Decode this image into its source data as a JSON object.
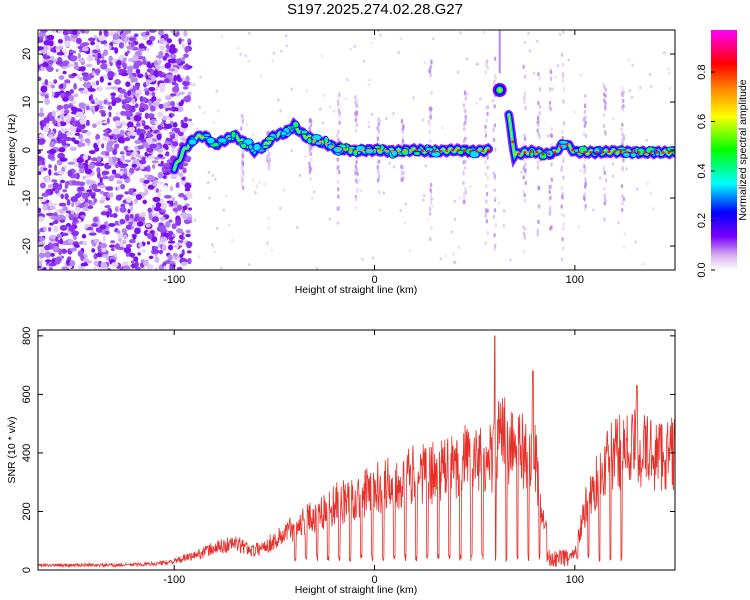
{
  "title": "S197.2025.274.02.28.G27",
  "chart_data": [
    {
      "type": "heatmap",
      "name": "spectrogram",
      "xlabel": "Height of straight line (km)",
      "ylabel": "Frequency (Hz)",
      "xlim": [
        -168,
        150
      ],
      "ylim": [
        -25,
        25
      ],
      "xticks": [
        -100,
        0,
        100
      ],
      "yticks": [
        -20,
        -10,
        0,
        10,
        20
      ],
      "xtick_labels": [
        "-100",
        "0",
        "100"
      ],
      "ytick_labels": [
        "-20",
        "-10",
        "0",
        "10",
        "20"
      ],
      "colorbar": {
        "label": "Normalized spectral amplitude",
        "range": [
          0,
          0.97
        ],
        "ticks": [
          0.0,
          0.2,
          0.4,
          0.6,
          0.8
        ],
        "tick_labels": [
          "0.0",
          "0.2",
          "0.4",
          "0.6",
          "0.8"
        ],
        "colors": [
          "#ffffff",
          "#d8b0f0",
          "#7a00ff",
          "#0000ff",
          "#00ffff",
          "#00ff00",
          "#ffff00",
          "#ff8000",
          "#ff0000",
          "#ff00ff"
        ]
      },
      "ridge": [
        [
          -100,
          -4
        ],
        [
          -95,
          0
        ],
        [
          -90,
          2.5
        ],
        [
          -85,
          3
        ],
        [
          -80,
          1
        ],
        [
          -75,
          2
        ],
        [
          -70,
          3
        ],
        [
          -60,
          0
        ],
        [
          -55,
          0.8
        ],
        [
          -50,
          3
        ],
        [
          -45,
          3.5
        ],
        [
          -40,
          5
        ],
        [
          -35,
          3
        ],
        [
          -30,
          2
        ],
        [
          -25,
          1.5
        ],
        [
          -20,
          0.5
        ],
        [
          -10,
          -0.2
        ],
        [
          0,
          0
        ],
        [
          10,
          -0.3
        ],
        [
          20,
          0
        ],
        [
          30,
          -0.3
        ],
        [
          40,
          0
        ],
        [
          50,
          -0.3
        ],
        [
          57,
          0
        ],
        [
          62,
          12.5
        ],
        [
          65,
          12.5
        ],
        [
          70,
          -1
        ],
        [
          75,
          -0.5
        ],
        [
          80,
          -0.3
        ],
        [
          85,
          -1
        ],
        [
          90,
          -0.5
        ],
        [
          95,
          1.5
        ],
        [
          100,
          -0.4
        ],
        [
          110,
          -0.5
        ],
        [
          120,
          -0.3
        ],
        [
          130,
          -0.5
        ],
        [
          140,
          -0.5
        ],
        [
          150,
          -0.5
        ]
      ],
      "gap": [
        57,
        63
      ]
    },
    {
      "type": "line",
      "name": "snr",
      "xlabel": "Height of straight line (km)",
      "ylabel": "SNR (10 * v/v)",
      "xlim": [
        -168,
        150
      ],
      "ylim": [
        0,
        820
      ],
      "xticks": [
        -100,
        0,
        100
      ],
      "yticks": [
        0,
        200,
        400,
        600,
        800
      ],
      "xtick_labels": [
        "-100",
        "0",
        "100"
      ],
      "ytick_labels": [
        "0",
        "200",
        "400",
        "600",
        "800"
      ],
      "color": "#e8302a",
      "envelope": [
        [
          -168,
          20
        ],
        [
          -130,
          20
        ],
        [
          -110,
          25
        ],
        [
          -100,
          35
        ],
        [
          -90,
          60
        ],
        [
          -80,
          90
        ],
        [
          -70,
          110
        ],
        [
          -60,
          80
        ],
        [
          -50,
          120
        ],
        [
          -40,
          180
        ],
        [
          -30,
          230
        ],
        [
          -20,
          270
        ],
        [
          -10,
          300
        ],
        [
          0,
          330
        ],
        [
          10,
          370
        ],
        [
          20,
          390
        ],
        [
          30,
          400
        ],
        [
          38,
          420
        ],
        [
          45,
          460
        ],
        [
          55,
          440
        ],
        [
          60,
          480
        ],
        [
          63,
          560
        ],
        [
          70,
          500
        ],
        [
          80,
          470
        ],
        [
          85,
          180
        ],
        [
          90,
          20
        ],
        [
          95,
          40
        ],
        [
          100,
          70
        ],
        [
          105,
          250
        ],
        [
          110,
          350
        ],
        [
          115,
          420
        ],
        [
          120,
          480
        ],
        [
          130,
          510
        ],
        [
          140,
          480
        ],
        [
          150,
          480
        ]
      ],
      "dropout_ranges": [
        [
          -40,
          55
        ],
        [
          60,
          85
        ],
        [
          90,
          125
        ]
      ],
      "peaks": [
        [
          60,
          800
        ],
        [
          79,
          680
        ],
        [
          131,
          630
        ]
      ]
    }
  ]
}
